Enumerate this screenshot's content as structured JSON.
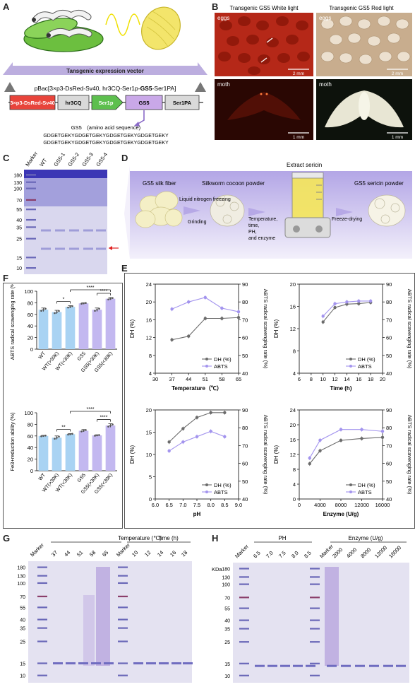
{
  "panel_labels": {
    "A": "A",
    "B": "B",
    "C": "C",
    "D": "D",
    "E": "E",
    "F": "F",
    "G": "G",
    "H": "H"
  },
  "panelA": {
    "vector_title": "Tansgenic expression vector",
    "vector_name_parts": [
      "pBac[3×p3-DsRed-Sv40, hr3CQ-Ser1p-",
      "GS5",
      "-Ser1PA]"
    ],
    "boxes": [
      "3×p3-DsRed-Sv40",
      "hr3CQ",
      "Ser1p",
      "GS5",
      "Ser1PA"
    ],
    "seq_title": "GS5　(amino acid sequence)",
    "seq_lines": [
      "GDGETGEKYGDGETGEKYGDGETGEKYGDGETGEKY",
      "GDGETGEKYGDGETGEKYGDGETGEKYGDGETGEKY"
    ],
    "colors": {
      "dsred": "#e8443b",
      "ser1p": "#5dbf4e",
      "gs5": "#c9a8e8",
      "gray_box": "#d9d9d9",
      "banner": "#bcaedf"
    }
  },
  "panelB": {
    "titles": [
      "Transgenic GS5 White light",
      "Transgenic GS5 Red light"
    ],
    "labels": [
      "eggs",
      "eggs",
      "moth",
      "moth"
    ],
    "scales": [
      "2 mm",
      "2 mm",
      "1 mm",
      "1 mm"
    ]
  },
  "panelC": {
    "lanes": [
      "Marker",
      "WT",
      "GS5-1",
      "GS5-2",
      "GS5-3",
      "GS5-4"
    ],
    "mw": [
      "180",
      "130",
      "100",
      "70",
      "55",
      "40",
      "35",
      "25",
      "15",
      "10"
    ]
  },
  "panelD": {
    "steps": [
      "GS5 silk fiber",
      "Silkworm cocoon powder",
      "Extract sericin",
      "GS5 sericin powder"
    ],
    "arrow_labels": [
      "Liquid nitrogen freezing",
      "Grinding",
      "Temperature,",
      "time,",
      "PH,",
      "and enzyme",
      "Freeze-drying"
    ]
  },
  "chart_data": [
    {
      "type": "line",
      "panel": "E-temperature",
      "xlabel": "Temperature（℃）",
      "ylabel": "DH (%)",
      "y2label": "ABTS radical scavenging rate (%)",
      "x": [
        37,
        44,
        51,
        58,
        65
      ],
      "xlim": [
        30,
        65
      ],
      "xticks": [
        "30",
        "37",
        "44",
        "51",
        "58",
        "65"
      ],
      "ylim": [
        4,
        24
      ],
      "yticks": [
        "4",
        "8",
        "12",
        "16",
        "20",
        "24"
      ],
      "y2lim": [
        40,
        90
      ],
      "y2ticks": [
        "40",
        "50",
        "60",
        "70",
        "80",
        "90"
      ],
      "series": [
        {
          "name": "DH (%)",
          "axis": "left",
          "values": [
            11.5,
            12.3,
            16.3,
            16.3,
            16.5
          ]
        },
        {
          "name": "ABTS",
          "axis": "right",
          "values": [
            76,
            80,
            82.5,
            76.5,
            74.5
          ]
        }
      ],
      "legend": "bottom-right"
    },
    {
      "type": "line",
      "panel": "E-time",
      "xlabel": "Time (h)",
      "ylabel": "DH (%)",
      "y2label": "ABTS radical scavenging rate (%)",
      "x": [
        10,
        12,
        14,
        16,
        18
      ],
      "xlim": [
        6,
        20
      ],
      "xticks": [
        "6",
        "8",
        "10",
        "12",
        "14",
        "16",
        "18",
        "20"
      ],
      "ylim": [
        4,
        20
      ],
      "yticks": [
        "4",
        "8",
        "12",
        "16",
        "20"
      ],
      "y2lim": [
        40,
        90
      ],
      "y2ticks": [
        "40",
        "50",
        "60",
        "70",
        "80",
        "90"
      ],
      "series": [
        {
          "name": "DH (%)",
          "axis": "left",
          "values": [
            13.2,
            15.8,
            16.4,
            16.5,
            16.7
          ]
        },
        {
          "name": "ABTS",
          "axis": "right",
          "values": [
            72,
            79,
            80,
            80.5,
            80.5
          ]
        }
      ],
      "legend": "bottom-right"
    },
    {
      "type": "line",
      "panel": "E-pH",
      "xlabel": "pH",
      "ylabel": "DH (%)",
      "y2label": "ABTS radical scavenging rate (%)",
      "x": [
        6.5,
        7.0,
        7.5,
        8.0,
        8.5
      ],
      "xlim": [
        6.0,
        9.0
      ],
      "xticks": [
        "6.0",
        "6.5",
        "7.0",
        "7.5",
        "8.0",
        "8.5",
        "9.0"
      ],
      "ylim": [
        0,
        20
      ],
      "yticks": [
        "0",
        "5",
        "10",
        "15",
        "20"
      ],
      "y2lim": [
        40,
        90
      ],
      "y2ticks": [
        "40",
        "50",
        "60",
        "70",
        "80",
        "90"
      ],
      "series": [
        {
          "name": "DH (%)",
          "axis": "left",
          "values": [
            12.8,
            15.8,
            18.3,
            19.4,
            19.4
          ]
        },
        {
          "name": "ABTS",
          "axis": "right",
          "values": [
            67,
            72,
            75,
            78,
            75
          ]
        }
      ],
      "legend": "bottom-right"
    },
    {
      "type": "line",
      "panel": "E-enzyme",
      "xlabel": "Enzyme (U/g)",
      "ylabel": "DH (%)",
      "y2label": "ABTS radical scavenging rate (%)",
      "x": [
        2000,
        4000,
        8000,
        12000,
        16000
      ],
      "xlim": [
        0,
        16000
      ],
      "xticks": [
        "0",
        "4000",
        "8000",
        "12000",
        "16000"
      ],
      "ylim": [
        0,
        24
      ],
      "yticks": [
        "0",
        "4",
        "8",
        "12",
        "16",
        "20",
        "24"
      ],
      "y2lim": [
        40,
        90
      ],
      "y2ticks": [
        "40",
        "50",
        "60",
        "70",
        "80",
        "90"
      ],
      "series": [
        {
          "name": "DH (%)",
          "axis": "left",
          "values": [
            9.5,
            13.0,
            15.8,
            16.3,
            16.6
          ]
        },
        {
          "name": "ABTS",
          "axis": "right",
          "values": [
            63,
            73,
            79,
            79,
            78
          ]
        }
      ],
      "legend": "bottom-right"
    },
    {
      "type": "bar",
      "panel": "F-ABTS",
      "ylabel": "ABTS radical scavenging rate (%)",
      "categories": [
        "WT",
        "WT(>30K)",
        "WT(<30K)",
        "GS5",
        "GS5(>30K)",
        "GS5(<30K)"
      ],
      "values": [
        68,
        64,
        73,
        79,
        68,
        87
      ],
      "errors": [
        3,
        3,
        2,
        1,
        3,
        2
      ],
      "ylim": [
        0,
        100
      ],
      "yticks": [
        "0",
        "20",
        "40",
        "60",
        "80",
        "100"
      ],
      "significance": [
        {
          "from": "WT(>30K)",
          "to": "WT(<30K)",
          "label": "*"
        },
        {
          "from": "GS5(>30K)",
          "to": "GS5(<30K)",
          "label": "****"
        },
        {
          "from": "WT(<30K)",
          "to": "GS5(<30K)",
          "label": "****"
        }
      ],
      "colors": [
        "#a9d3f3",
        "#a9d3f3",
        "#a9d3f3",
        "#c3b8f0",
        "#c3b8f0",
        "#c3b8f0"
      ]
    },
    {
      "type": "bar",
      "panel": "F-Fe",
      "ylabel": "Fe3+reduction ability (%)",
      "categories": [
        "WT",
        "WT(>30K)",
        "WT(<30K)",
        "GS5",
        "GS5(>30K)",
        "GS5(<30K)"
      ],
      "values": [
        60,
        57,
        63,
        69,
        61,
        78
      ],
      "errors": [
        1,
        3,
        1,
        2,
        1,
        3
      ],
      "ylim": [
        0,
        100
      ],
      "yticks": [
        "0",
        "20",
        "40",
        "60",
        "80",
        "100"
      ],
      "significance": [
        {
          "from": "WT(>30K)",
          "to": "WT(<30K)",
          "label": "**"
        },
        {
          "from": "GS5(>30K)",
          "to": "GS5(<30K)",
          "label": "****"
        },
        {
          "from": "WT(<30K)",
          "to": "GS5(<30K)",
          "label": "****"
        }
      ],
      "colors": [
        "#a9d3f3",
        "#a9d3f3",
        "#a9d3f3",
        "#c3b8f0",
        "#c3b8f0",
        "#c3b8f0"
      ]
    }
  ],
  "gelG": {
    "group_temp": "Temperature (℃)",
    "group_time": "Time (h)",
    "lanes": [
      "Marker",
      "37",
      "44",
      "51",
      "58",
      "65",
      "Marker",
      "10",
      "12",
      "14",
      "16",
      "18"
    ],
    "mw": [
      "180",
      "130",
      "100",
      "70",
      "55",
      "40",
      "35",
      "25",
      "15",
      "10"
    ]
  },
  "gelH": {
    "group_ph": "PH",
    "group_enzyme": "Enzyme (U/g)",
    "kda": "KDa",
    "lanes": [
      "Marker",
      "6.5",
      "7.0",
      "7.5",
      "8.0",
      "8.5",
      "Marker",
      "2000",
      "4000",
      "8000",
      "12000",
      "16000"
    ],
    "mw": [
      "180",
      "130",
      "100",
      "70",
      "55",
      "40",
      "35",
      "25",
      "15",
      "10"
    ]
  },
  "gelC_marker": "Marker"
}
